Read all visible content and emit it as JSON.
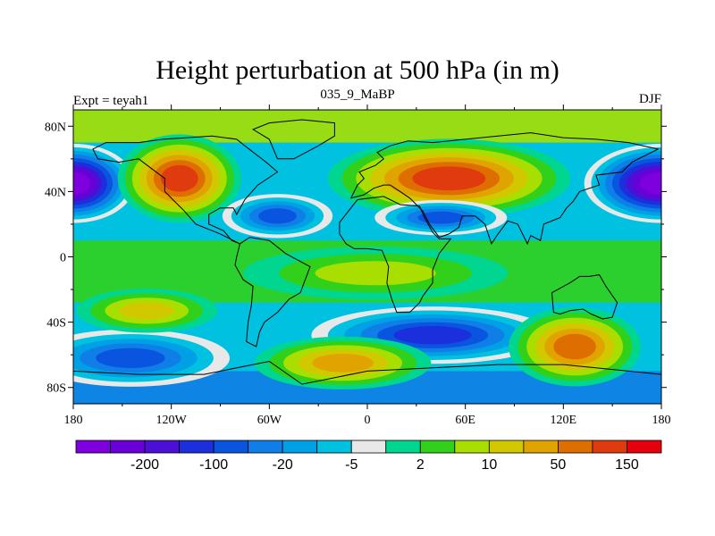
{
  "title": "Height perturbation at 500 hPa (in m)",
  "subtitle_left": "Expt = teyah1",
  "subtitle_center": "035_9_MaBP",
  "subtitle_right": "DJF",
  "x_ticks": [
    {
      "value": -180,
      "label": "180"
    },
    {
      "value": -120,
      "label": "120W"
    },
    {
      "value": -60,
      "label": "60W"
    },
    {
      "value": 0,
      "label": "0"
    },
    {
      "value": 60,
      "label": "60E"
    },
    {
      "value": 120,
      "label": "120E"
    },
    {
      "value": 180,
      "label": "180"
    }
  ],
  "y_ticks": [
    {
      "value": 80,
      "label": "80N"
    },
    {
      "value": 40,
      "label": "40N"
    },
    {
      "value": 0,
      "label": "0"
    },
    {
      "value": -40,
      "label": "40S"
    },
    {
      "value": -80,
      "label": "80S"
    }
  ],
  "colorbar": {
    "colors": [
      "#7f00df",
      "#6a00d8",
      "#4b0fd6",
      "#1c2fdc",
      "#0a55e0",
      "#0f7ee6",
      "#00a0e6",
      "#00c2e0",
      "#e8e8e8",
      "#00d68f",
      "#31d11b",
      "#a8df00",
      "#d2c800",
      "#e0a300",
      "#df6e00",
      "#e03a0f",
      "#e6000b"
    ],
    "labels": [
      {
        "after_index": 1,
        "text": "-200"
      },
      {
        "after_index": 3,
        "text": "-100"
      },
      {
        "after_index": 5,
        "text": "-20"
      },
      {
        "after_index": 7,
        "text": "-5"
      },
      {
        "after_index": 9,
        "text": "2"
      },
      {
        "after_index": 11,
        "text": "10"
      },
      {
        "after_index": 13,
        "text": "50"
      },
      {
        "after_index": 15,
        "text": "150"
      }
    ]
  },
  "features": [
    {
      "name": "trough-north-pacific-west",
      "lon": -180,
      "lat": 45,
      "rlon": 28,
      "rlat": 18,
      "level": 0
    },
    {
      "name": "trough-north-pacific-east",
      "lon": 180,
      "lat": 45,
      "rlon": 35,
      "rlat": 18,
      "level": 0
    },
    {
      "name": "ridge-north-america",
      "lon": -115,
      "lat": 48,
      "rlon": 28,
      "rlat": 20,
      "level": 15
    },
    {
      "name": "ridge-eurasia",
      "lon": 50,
      "lat": 48,
      "rlon": 55,
      "rlat": 18,
      "level": 15
    },
    {
      "name": "low-central-asia",
      "lon": 45,
      "lat": 24,
      "rlon": 30,
      "rlat": 8,
      "level": 4
    },
    {
      "name": "low-north-atlantic",
      "lon": -55,
      "lat": 25,
      "rlon": 25,
      "rlat": 10,
      "level": 4
    },
    {
      "name": "low-southern-ocean",
      "lon": 40,
      "lat": -48,
      "rlon": 55,
      "rlat": 13,
      "level": 3
    },
    {
      "name": "low-south-pacific",
      "lon": -145,
      "lat": -62,
      "rlon": 45,
      "rlat": 13,
      "level": 4
    },
    {
      "name": "ridge-australia",
      "lon": 127,
      "lat": -55,
      "rlon": 30,
      "rlat": 18,
      "level": 14
    },
    {
      "name": "ridge-south-atlantic",
      "lon": -15,
      "lat": -65,
      "rlon": 40,
      "rlat": 12,
      "level": 13
    },
    {
      "name": "ridge-south-pacific",
      "lon": -135,
      "lat": -33,
      "rlon": 32,
      "rlat": 10,
      "level": 12
    },
    {
      "name": "high-tropics",
      "lon": 5,
      "lat": -10,
      "rlon": 60,
      "rlat": 12,
      "level": 11
    }
  ],
  "map_colors": {
    "background": "#00c2e0",
    "outline": "#000000",
    "zero_band": "#e8e8e8"
  }
}
